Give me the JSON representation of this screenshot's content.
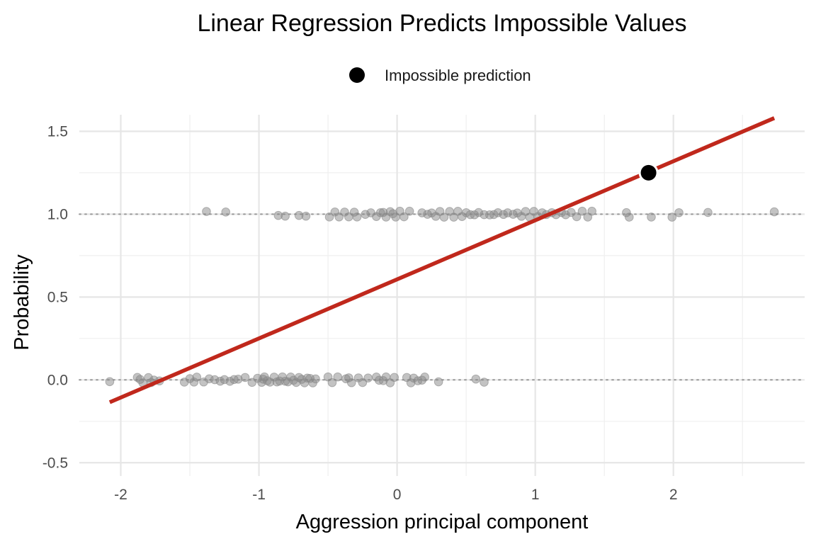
{
  "chart_data": {
    "type": "scatter",
    "title": "Linear Regression Predicts Impossible Values",
    "xlabel": "Aggression principal component",
    "ylabel": "Probability",
    "xlim": [
      -2.3,
      2.95
    ],
    "ylim": [
      -0.58,
      1.6
    ],
    "x_ticks": [
      -2,
      -1,
      0,
      1,
      2
    ],
    "x_tick_labels": [
      "-2",
      "-1",
      "0",
      "1",
      "2"
    ],
    "y_ticks": [
      -0.5,
      0,
      0.5,
      1,
      1.5
    ],
    "y_tick_labels": [
      "-0.5",
      "0.0",
      "0.5",
      "1.0",
      "1.5"
    ],
    "grid": true,
    "legend": {
      "position": "top-center",
      "entries": [
        {
          "label": "Impossible prediction",
          "marker": "circle",
          "color": "#000000"
        }
      ]
    },
    "reference_lines_y": [
      0,
      1
    ],
    "series": [
      {
        "kind": "points",
        "color": "#888888",
        "y_value": 0,
        "x": [
          -2.08,
          -1.88,
          -1.86,
          -1.84,
          -1.8,
          -1.78,
          -1.76,
          -1.72,
          -1.54,
          -1.5,
          -1.47,
          -1.45,
          -1.4,
          -1.36,
          -1.32,
          -1.28,
          -1.25,
          -1.21,
          -1.18,
          -1.15,
          -1.1,
          -1.05,
          -1.01,
          -0.98,
          -0.97,
          -0.96,
          -0.94,
          -0.92,
          -0.89,
          -0.87,
          -0.85,
          -0.83,
          -0.81,
          -0.79,
          -0.77,
          -0.75,
          -0.73,
          -0.71,
          -0.69,
          -0.67,
          -0.65,
          -0.63,
          -0.61,
          -0.59,
          -0.5,
          -0.47,
          -0.43,
          -0.37,
          -0.35,
          -0.33,
          -0.28,
          -0.25,
          -0.21,
          -0.15,
          -0.13,
          -0.1,
          -0.08,
          -0.05,
          -0.02,
          0.07,
          0.1,
          0.12,
          0.15,
          0.18,
          0.2,
          0.3,
          0.57,
          0.63
        ]
      },
      {
        "kind": "points",
        "color": "#888888",
        "y_value": 1,
        "x": [
          -1.38,
          -1.24,
          -0.86,
          -0.81,
          -0.71,
          -0.66,
          -0.49,
          -0.45,
          -0.42,
          -0.38,
          -0.35,
          -0.31,
          -0.29,
          -0.23,
          -0.19,
          -0.15,
          -0.12,
          -0.1,
          -0.08,
          -0.05,
          -0.03,
          -0.01,
          0.02,
          0.05,
          0.09,
          0.18,
          0.22,
          0.25,
          0.28,
          0.31,
          0.34,
          0.38,
          0.41,
          0.44,
          0.47,
          0.5,
          0.53,
          0.56,
          0.59,
          0.63,
          0.67,
          0.7,
          0.73,
          0.77,
          0.8,
          0.84,
          0.87,
          0.9,
          0.93,
          0.96,
          0.99,
          1.02,
          1.05,
          1.08,
          1.12,
          1.15,
          1.19,
          1.22,
          1.26,
          1.3,
          1.34,
          1.38,
          1.41,
          1.66,
          1.68,
          1.84,
          1.99,
          2.04,
          2.25,
          2.73
        ]
      },
      {
        "kind": "line",
        "color": "#C0281C",
        "x": [
          -2.08,
          2.73
        ],
        "y": [
          -0.135,
          1.58
        ]
      },
      {
        "kind": "highlight",
        "name": "Impossible prediction",
        "color": "#000000",
        "x": [
          1.82
        ],
        "y": [
          1.25
        ]
      }
    ]
  }
}
